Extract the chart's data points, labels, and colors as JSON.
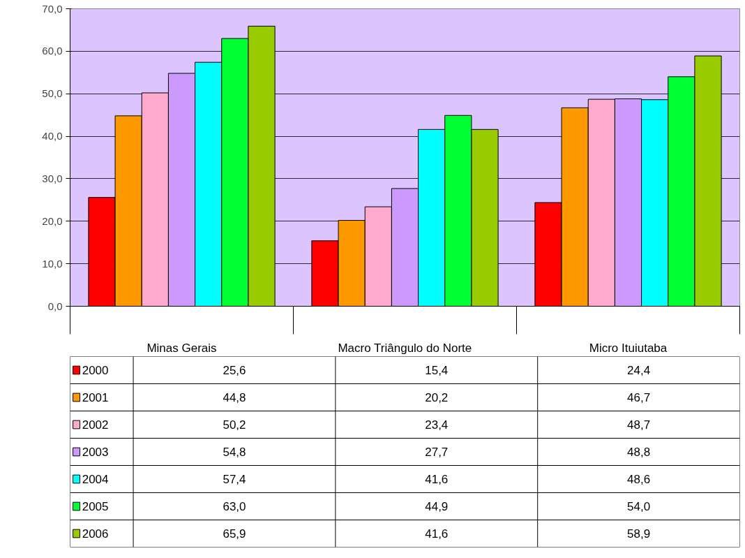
{
  "chart_data": {
    "type": "bar",
    "categories": [
      "Minas Gerais",
      "Macro Triângulo do Norte",
      "Micro Ituiutaba"
    ],
    "ylim": [
      0,
      70
    ],
    "yticks": [
      {
        "value": 0,
        "label": "0,0"
      },
      {
        "value": 10,
        "label": "10,0"
      },
      {
        "value": 20,
        "label": "20,0"
      },
      {
        "value": 30,
        "label": "30,0"
      },
      {
        "value": 40,
        "label": "40,0"
      },
      {
        "value": 50,
        "label": "50,0"
      },
      {
        "value": 60,
        "label": "60,0"
      },
      {
        "value": 70,
        "label": "70,0"
      }
    ],
    "grid": "y",
    "legend": "bottom left",
    "series": [
      {
        "name": "2000",
        "color": "#ff0000",
        "values": [
          25.6,
          15.4,
          24.4
        ],
        "value_labels": [
          "25,6",
          "15,4",
          "24,4"
        ]
      },
      {
        "name": "2001",
        "color": "#ff9900",
        "values": [
          44.8,
          20.2,
          46.7
        ],
        "value_labels": [
          "44,8",
          "20,2",
          "46,7"
        ]
      },
      {
        "name": "2002",
        "color": "#ffaacc",
        "values": [
          50.2,
          23.4,
          48.7
        ],
        "value_labels": [
          "50,2",
          "23,4",
          "48,7"
        ]
      },
      {
        "name": "2003",
        "color": "#cc99ff",
        "values": [
          54.8,
          27.7,
          48.8
        ],
        "value_labels": [
          "54,8",
          "27,7",
          "48,8"
        ]
      },
      {
        "name": "2004",
        "color": "#00ffff",
        "values": [
          57.4,
          41.6,
          48.6
        ],
        "value_labels": [
          "57,4",
          "41,6",
          "48,6"
        ]
      },
      {
        "name": "2005",
        "color": "#00ff33",
        "values": [
          63.0,
          44.9,
          54.0
        ],
        "value_labels": [
          "63,0",
          "44,9",
          "54,0"
        ]
      },
      {
        "name": "2006",
        "color": "#99cc00",
        "values": [
          65.9,
          41.6,
          58.9
        ],
        "value_labels": [
          "65,9",
          "41,6",
          "58,9"
        ]
      }
    ]
  }
}
